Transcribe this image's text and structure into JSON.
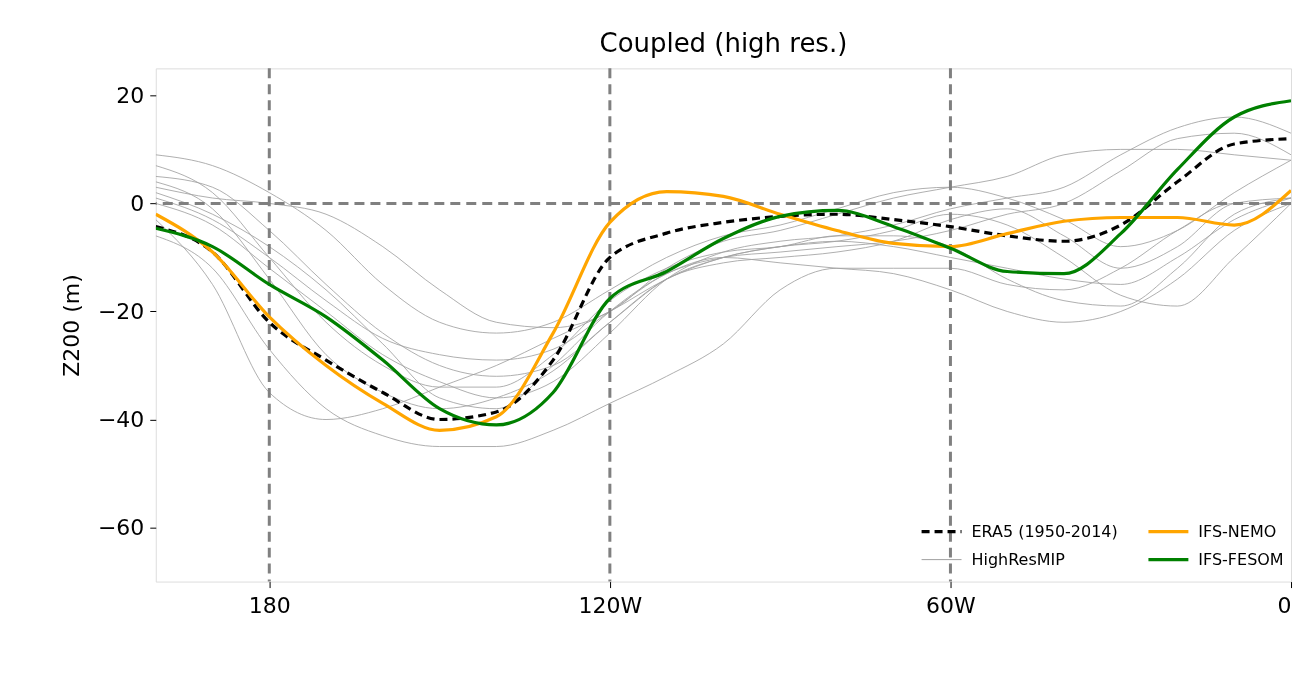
{
  "chart_data": {
    "type": "line",
    "title": "Coupled (high res.)",
    "ylabel": "Z200 (m)",
    "x": [
      -200,
      -190,
      -180,
      -170,
      -160,
      -150,
      -140,
      -130,
      -120,
      -110,
      -100,
      -90,
      -80,
      -70,
      -60,
      -50,
      -40,
      -30,
      -20,
      -10,
      0
    ],
    "xlim": [
      -200,
      0
    ],
    "xticks": [
      {
        "value": -180,
        "label": "180"
      },
      {
        "value": -120,
        "label": "120W"
      },
      {
        "value": -60,
        "label": "60W"
      },
      0
    ],
    "ylim": [
      -70,
      25
    ],
    "yticks": [
      {
        "value": -60,
        "label": "−60"
      },
      {
        "value": -40,
        "label": "−40"
      },
      {
        "value": -20,
        "label": "−20"
      },
      0,
      20
    ],
    "grid": false,
    "legend": "bottom right",
    "marker": "none",
    "ref_lines": [
      {
        "axis": "x",
        "value": -180,
        "color": "#808080",
        "line_style": "dashed"
      },
      {
        "axis": "x",
        "value": -120,
        "color": "#808080",
        "line_style": "dashed"
      },
      {
        "axis": "x",
        "value": -60,
        "color": "#808080",
        "line_style": "dashed"
      },
      {
        "axis": "y",
        "value": 0,
        "color": "#808080",
        "line_style": "dashed"
      }
    ],
    "series": [
      {
        "name": "ERA5 (1950-2014)",
        "color": "#000000",
        "line_style": "dashed",
        "values": [
          -4.3,
          -9,
          -22,
          -29,
          -35,
          -40,
          -38.6,
          -29,
          -10,
          -5.5,
          -3.5,
          -2.4,
          -2,
          -3,
          -4.3,
          -6,
          -7,
          -4,
          4,
          11,
          12
        ]
      },
      {
        "name": "HighResMIP",
        "color": "#a0a0a0",
        "line_style": "solid",
        "values": [
          -6,
          -12,
          -27,
          -38,
          -43,
          -45,
          -45,
          -42,
          -37,
          -32,
          -26,
          -16,
          -12,
          -12,
          -12,
          -15,
          -16,
          -12,
          -5,
          0,
          0
        ]
      },
      {
        "color": "#a0a0a0",
        "line_style": "solid",
        "values": [
          -3,
          -15,
          -35,
          -40,
          -38,
          -34,
          -30,
          -25,
          -20,
          -14,
          -10,
          -8,
          -7,
          -8,
          -10,
          -12,
          -14,
          -15,
          -10,
          -3,
          1
        ]
      },
      {
        "color": "#a0a0a0",
        "line_style": "solid",
        "values": [
          9,
          7,
          2,
          -5,
          -15,
          -22,
          -24,
          -22,
          -16,
          -10,
          -6,
          -4,
          -1,
          2,
          3,
          1,
          -3,
          -8,
          -5,
          2,
          8
        ]
      },
      {
        "color": "#a0a0a0",
        "line_style": "solid",
        "values": [
          3,
          1,
          0,
          -2,
          -8,
          -16,
          -22,
          -23,
          -20,
          -12,
          -7,
          -5,
          -2,
          1,
          3,
          5,
          9,
          10,
          10,
          9,
          8
        ]
      },
      {
        "color": "#a0a0a0",
        "line_style": "solid",
        "values": [
          5,
          3,
          -5,
          -15,
          -24,
          -30,
          -32,
          -30,
          -22,
          -14,
          -10,
          -8,
          -7,
          -5,
          -2,
          -4,
          -10,
          -17,
          -19,
          -10,
          0
        ]
      },
      {
        "color": "#a0a0a0",
        "line_style": "solid",
        "values": [
          7,
          2,
          -10,
          -22,
          -30,
          -34,
          -34,
          -28,
          -18,
          -12,
          -9,
          -8,
          -6,
          -6,
          -8,
          -14,
          -18,
          -19,
          -12,
          -2,
          1
        ]
      },
      {
        "color": "#a0a0a0",
        "line_style": "solid",
        "values": [
          0,
          -4,
          -12,
          -20,
          -28,
          -33,
          -36,
          -33,
          -24,
          -14,
          -9,
          -7,
          -6,
          -4,
          -1,
          1,
          3,
          9,
          14,
          16,
          13
        ]
      },
      {
        "color": "#a0a0a0",
        "line_style": "solid",
        "values": [
          2,
          -2,
          -8,
          -16,
          -26,
          -36,
          -38,
          -30,
          -20,
          -13,
          -10,
          -9,
          -8,
          -7,
          -5,
          -2,
          0,
          6,
          12,
          13,
          9
        ]
      },
      {
        "color": "#a0a0a0",
        "line_style": "solid",
        "values": [
          4,
          -1,
          -14,
          -28,
          -35,
          -38,
          -36,
          -31,
          -22,
          -14,
          -11,
          -10,
          -9,
          -7,
          -3,
          -1,
          -6,
          -12,
          -8,
          0,
          1
        ]
      },
      {
        "color": "#a0a0a0",
        "line_style": "solid",
        "values": [
          1,
          -3,
          -10,
          -18,
          -25,
          -28,
          -29,
          -27,
          -20,
          -13,
          -10,
          -11,
          -12,
          -13,
          -16,
          -20,
          -22,
          -20,
          -14,
          -5,
          0
        ]
      },
      {
        "name": "IFS-NEMO",
        "color": "#ffa500",
        "line_style": "solid",
        "values": [
          -2,
          -9,
          -21,
          -30,
          -37,
          -42,
          -39.5,
          -24,
          -3.5,
          2.2,
          1.3,
          -2,
          -5,
          -7.4,
          -8,
          -5.6,
          -3.3,
          -2.6,
          -2.6,
          -4,
          2.4
        ]
      },
      {
        "name": "IFS-FESOM",
        "color": "#008000",
        "line_style": "solid",
        "values": [
          -4.6,
          -8,
          -15,
          -21,
          -29,
          -38,
          -41,
          -35,
          -17.6,
          -12.6,
          -6.5,
          -2.4,
          -1.3,
          -4.3,
          -8.3,
          -12.6,
          -13,
          -5.6,
          6.3,
          16,
          19
        ]
      }
    ]
  }
}
